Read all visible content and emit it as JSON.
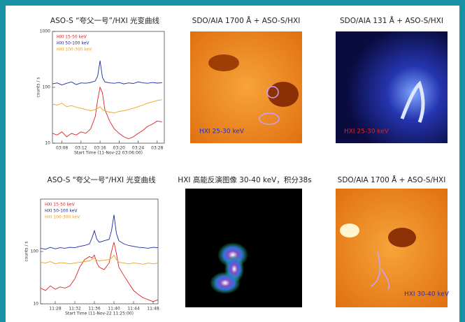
{
  "chart_data": [
    {
      "type": "line",
      "title": "ASO-S “夸父一号”/HXI 光变曲线",
      "xlabel": "Start Time (11-Nov-22 03:06:00)",
      "ylabel": "counts / s",
      "log_y": true,
      "x": [
        0,
        1,
        2,
        3,
        4,
        5,
        6,
        7,
        8,
        9,
        9.5,
        10,
        10.5,
        11,
        12,
        13,
        14,
        15,
        16,
        17,
        18,
        19,
        20,
        21,
        22,
        23
      ],
      "xlim": [
        0,
        23.5
      ],
      "xticks": [
        {
          "value": 2,
          "label": "03:08"
        },
        {
          "value": 6,
          "label": "03:12"
        },
        {
          "value": 10,
          "label": "03:16"
        },
        {
          "value": 14,
          "label": "03:20"
        },
        {
          "value": 18,
          "label": "03:24"
        },
        {
          "value": 22,
          "label": "03:28"
        }
      ],
      "ylim": [
        10,
        1000
      ],
      "yticks": [
        10,
        100,
        1000
      ],
      "series": [
        {
          "name": "HXI 15-50 keV",
          "color": "#e02020",
          "values": [
            15,
            14,
            16,
            13,
            15,
            14,
            16,
            15,
            18,
            30,
            60,
            100,
            80,
            40,
            25,
            18,
            15,
            13,
            12,
            13,
            15,
            17,
            20,
            22,
            25,
            24
          ]
        },
        {
          "name": "HXI 50-100 keV",
          "color": "#1a2aa0",
          "values": [
            115,
            120,
            110,
            118,
            125,
            112,
            120,
            118,
            122,
            130,
            160,
            300,
            150,
            125,
            120,
            118,
            122,
            115,
            120,
            117,
            125,
            120,
            118,
            122,
            119,
            121
          ]
        },
        {
          "name": "HXI 100-300 keV",
          "color": "#f0a020",
          "values": [
            50,
            48,
            52,
            45,
            47,
            44,
            42,
            40,
            38,
            40,
            42,
            45,
            40,
            38,
            36,
            35,
            37,
            38,
            40,
            42,
            45,
            48,
            52,
            55,
            58,
            60
          ]
        }
      ]
    },
    {
      "type": "line",
      "title": "ASO-S \"夸父一号\"/HXI 光变曲线",
      "xlabel": "Start Time (11-Nov-22 11:25:00)",
      "ylabel": "counts / s",
      "log_y": true,
      "x": [
        0,
        1,
        2,
        3,
        4,
        5,
        6,
        7,
        8,
        9,
        10,
        10.5,
        11,
        11.5,
        12,
        13,
        14,
        14.5,
        15,
        15.5,
        16,
        17,
        18,
        19,
        20,
        21,
        22,
        23,
        24
      ],
      "xlim": [
        0,
        24
      ],
      "xticks": [
        {
          "value": 3,
          "label": "11:28"
        },
        {
          "value": 7,
          "label": "11:32"
        },
        {
          "value": 11,
          "label": "11:36"
        },
        {
          "value": 15,
          "label": "11:40"
        },
        {
          "value": 19,
          "label": "11:44"
        },
        {
          "value": 23,
          "label": "11:48"
        }
      ],
      "ylim": [
        10,
        1000
      ],
      "yticks": [
        10,
        100
      ],
      "series": [
        {
          "name": "HXI 15-50 keV",
          "color": "#e02020",
          "values": [
            20,
            18,
            22,
            19,
            21,
            20,
            22,
            30,
            50,
            70,
            80,
            75,
            85,
            60,
            50,
            45,
            60,
            100,
            150,
            90,
            50,
            35,
            25,
            18,
            15,
            13,
            12,
            11,
            12
          ]
        },
        {
          "name": "HXI 50-100 keV",
          "color": "#1a2aa0",
          "values": [
            115,
            110,
            120,
            112,
            118,
            115,
            120,
            118,
            125,
            130,
            140,
            180,
            250,
            170,
            150,
            160,
            170,
            250,
            500,
            220,
            160,
            140,
            130,
            125,
            120,
            118,
            115,
            120,
            118
          ]
        },
        {
          "name": "HXI 100-300 keV",
          "color": "#f0a020",
          "values": [
            62,
            60,
            64,
            58,
            61,
            60,
            58,
            60,
            62,
            64,
            66,
            70,
            75,
            68,
            66,
            68,
            70,
            75,
            85,
            70,
            62,
            60,
            58,
            60,
            59,
            57,
            60,
            58,
            60
          ]
        }
      ]
    }
  ],
  "images": [
    {
      "title": "SDO/AIA 1700 Å + ASO-S/HXI",
      "label": "HXI 25-30 keV"
    },
    {
      "title": "SDO/AIA 131 Å + ASO-S/HXI",
      "label": "HXI 25-30 keV"
    },
    {
      "title": "HXI 高能反演图像 30-40 keV，积分38s"
    },
    {
      "title": "SDO/AIA 1700 Å + ASO-S/HXI",
      "label": "HXI 30-40 keV"
    }
  ]
}
